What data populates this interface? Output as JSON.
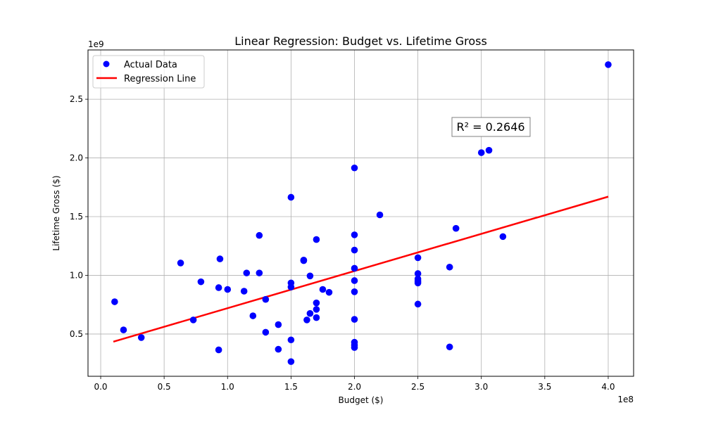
{
  "chart_data": {
    "type": "scatter",
    "title": "Linear Regression: Budget vs. Lifetime Gross",
    "xlabel": "Budget ($)",
    "ylabel": "Lifetime Gross ($)",
    "x_multiplier_label": "1e8",
    "y_multiplier_label": "1e9",
    "xlim": [
      -0.1,
      4.2
    ],
    "ylim": [
      0.14,
      2.92
    ],
    "xticks": [
      "0.0",
      "0.5",
      "1.0",
      "1.5",
      "2.0",
      "2.5",
      "3.0",
      "3.5",
      "4.0"
    ],
    "yticks": [
      "0.5",
      "1.0",
      "1.5",
      "2.0",
      "2.5"
    ],
    "grid": true,
    "legend": {
      "position": "top-left",
      "entries": [
        "Actual Data",
        "Regression Line"
      ]
    },
    "annotation": "R² = 0.2646",
    "series": [
      {
        "name": "Actual Data",
        "type": "scatter",
        "color": "#0000ff",
        "points": [
          [
            0.11,
            0.775
          ],
          [
            0.18,
            0.535
          ],
          [
            0.32,
            0.47
          ],
          [
            0.63,
            1.105
          ],
          [
            0.73,
            0.62
          ],
          [
            0.79,
            0.945
          ],
          [
            0.93,
            0.895
          ],
          [
            0.93,
            0.365
          ],
          [
            0.94,
            1.14
          ],
          [
            1.0,
            0.88
          ],
          [
            1.13,
            0.865
          ],
          [
            1.15,
            1.02
          ],
          [
            1.2,
            0.655
          ],
          [
            1.25,
            1.34
          ],
          [
            1.25,
            1.02
          ],
          [
            1.3,
            0.795
          ],
          [
            1.3,
            0.515
          ],
          [
            1.4,
            0.58
          ],
          [
            1.4,
            0.37
          ],
          [
            1.5,
            1.665
          ],
          [
            1.5,
            0.935
          ],
          [
            1.5,
            0.9
          ],
          [
            1.5,
            0.45
          ],
          [
            1.5,
            0.265
          ],
          [
            1.6,
            1.125
          ],
          [
            1.6,
            1.13
          ],
          [
            1.625,
            0.62
          ],
          [
            1.65,
            0.995
          ],
          [
            1.65,
            0.675
          ],
          [
            1.7,
            1.305
          ],
          [
            1.7,
            0.765
          ],
          [
            1.7,
            0.71
          ],
          [
            1.7,
            0.64
          ],
          [
            1.75,
            0.88
          ],
          [
            1.8,
            0.855
          ],
          [
            2.0,
            1.915
          ],
          [
            2.0,
            1.345
          ],
          [
            2.0,
            1.215
          ],
          [
            2.0,
            1.06
          ],
          [
            2.0,
            0.955
          ],
          [
            2.0,
            0.86
          ],
          [
            2.0,
            0.625
          ],
          [
            2.0,
            0.43
          ],
          [
            2.0,
            0.405
          ],
          [
            2.0,
            0.385
          ],
          [
            2.2,
            1.515
          ],
          [
            2.5,
            1.15
          ],
          [
            2.5,
            1.015
          ],
          [
            2.5,
            0.97
          ],
          [
            2.5,
            0.95
          ],
          [
            2.5,
            0.935
          ],
          [
            2.5,
            0.755
          ],
          [
            2.75,
            1.07
          ],
          [
            2.75,
            0.39
          ],
          [
            2.8,
            1.4
          ],
          [
            3.0,
            2.045
          ],
          [
            3.06,
            2.065
          ],
          [
            3.17,
            1.33
          ],
          [
            4.0,
            2.795
          ]
        ]
      },
      {
        "name": "Regression Line",
        "type": "line",
        "color": "#ff0000",
        "points": [
          [
            0.1,
            0.435
          ],
          [
            4.0,
            1.67
          ]
        ]
      }
    ]
  }
}
